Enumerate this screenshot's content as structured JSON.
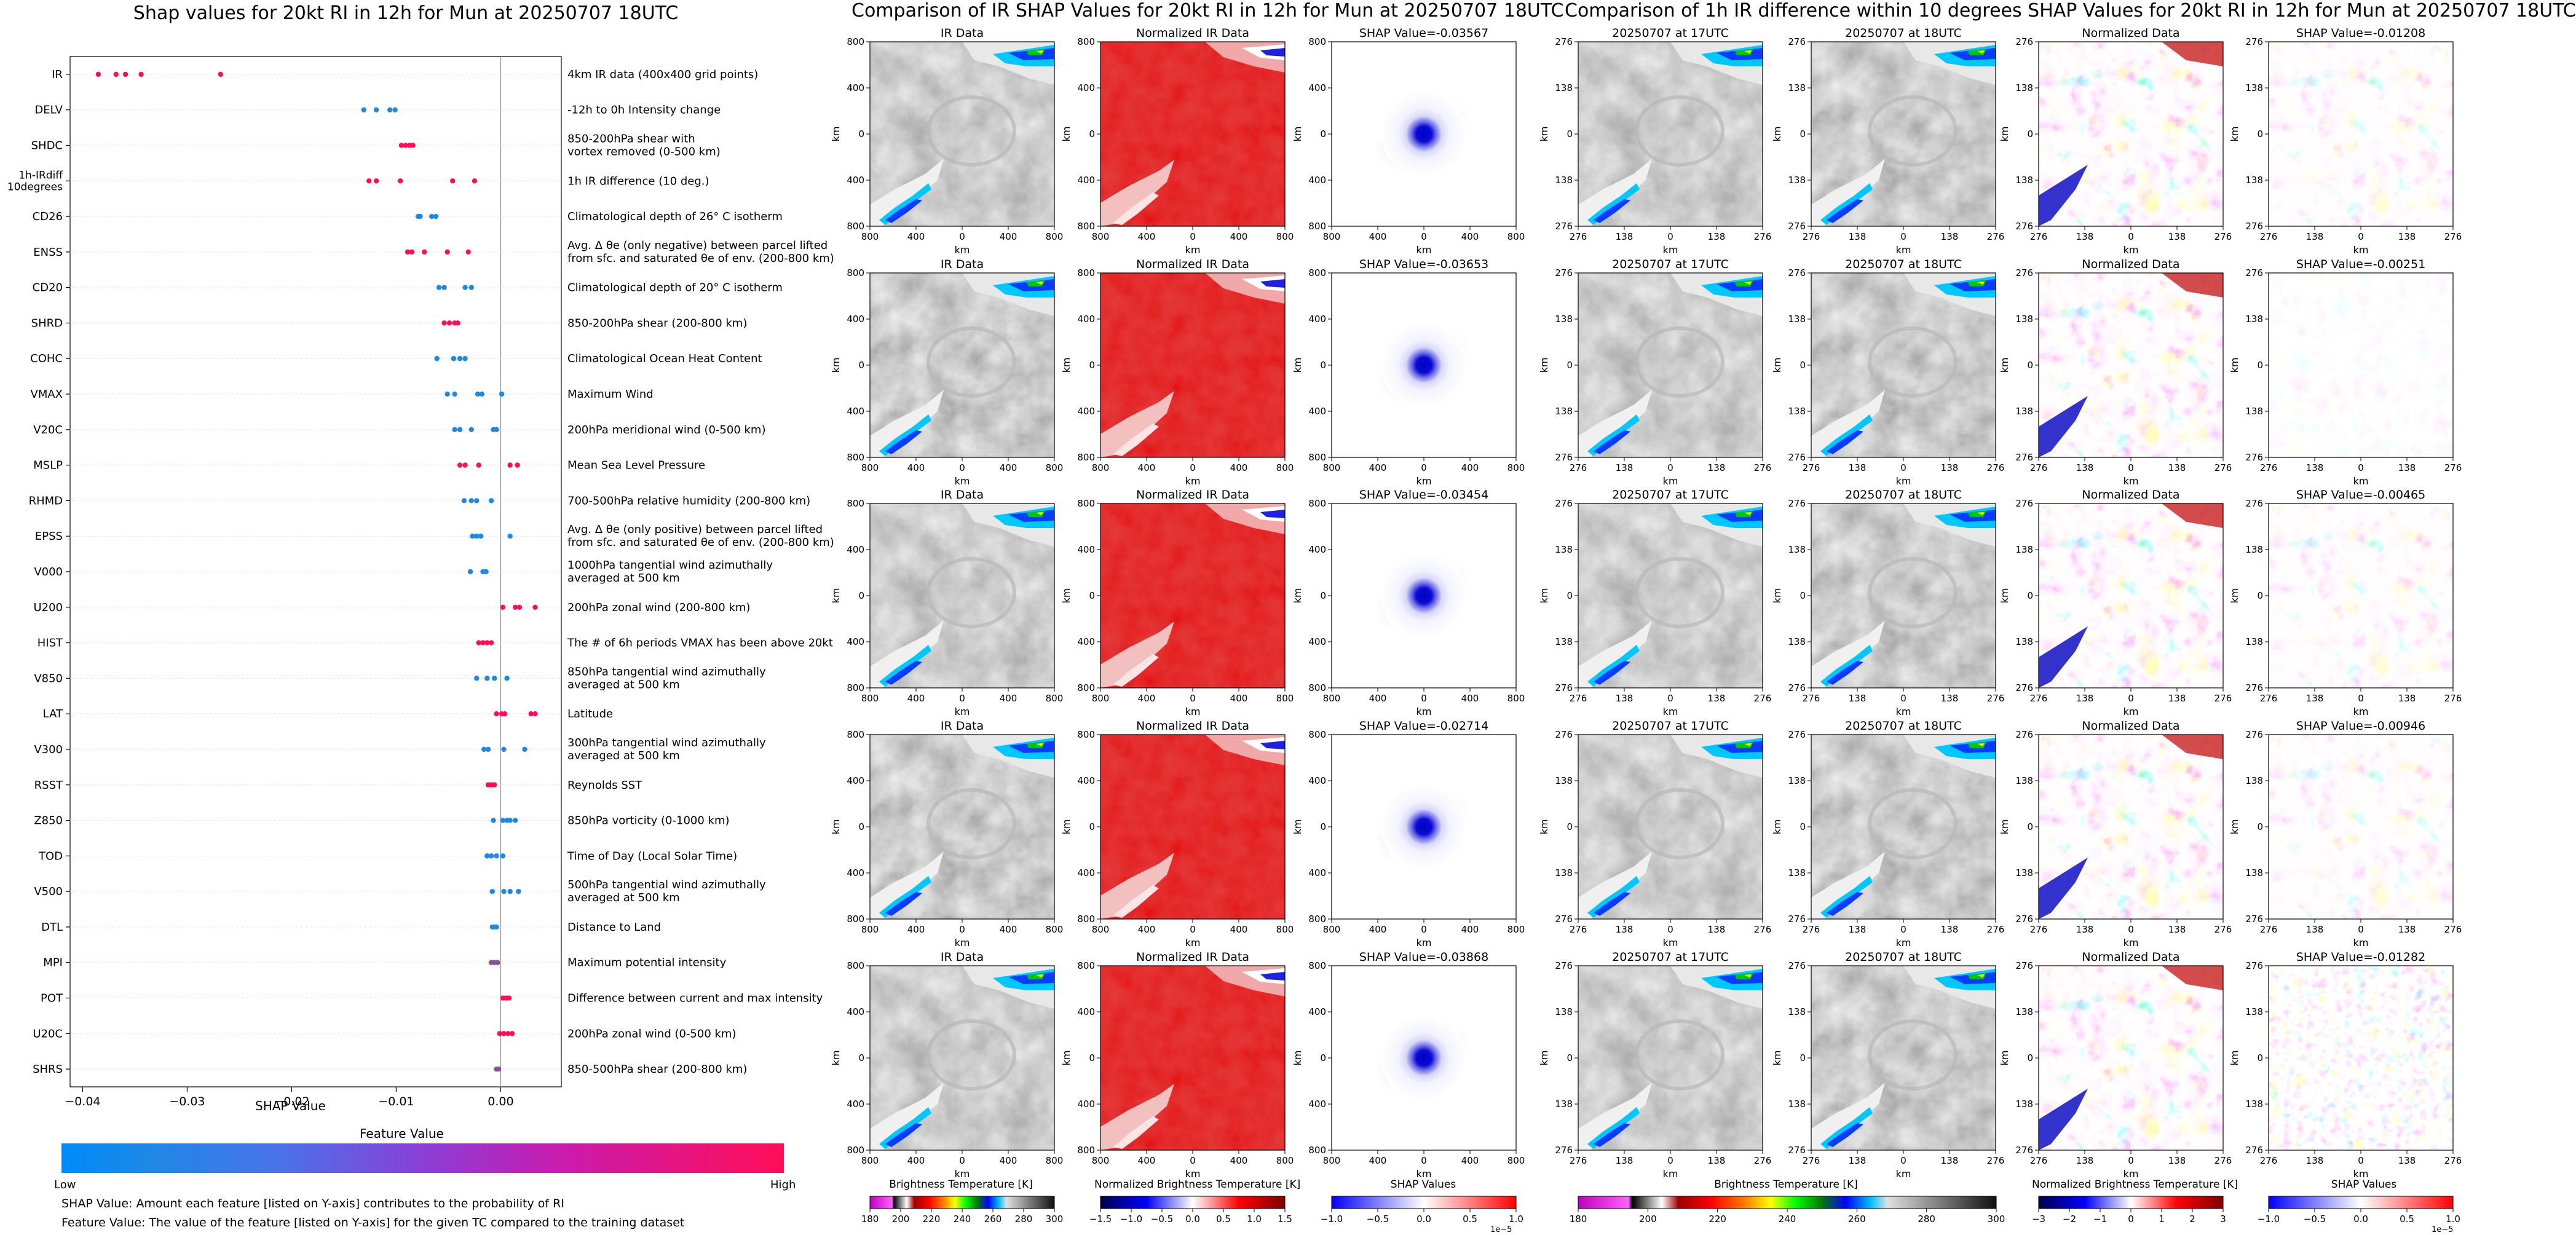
{
  "colors": {
    "low": "#1e88e5",
    "high": "#ff0d57",
    "panel_blue": "#0000c8",
    "panel_red": "#d00000"
  },
  "left_panel": {
    "title": "Shap values for 20kt RI in 12h for Mun at 20250707 18UTC",
    "xlabel": "SHAP Value",
    "feature_value_label": "Feature Value",
    "low_label": "Low",
    "high_label": "High",
    "footnote1": "SHAP Value: Amount each feature [listed on Y-axis] contributes to the probability of RI",
    "footnote2": "Feature Value: The value of the feature [listed on Y-axis] for the given TC compared to the training dataset"
  },
  "middle_panel": {
    "title": "Comparison of IR SHAP Values for 20kt RI in 12h for Mun at 20250707 18UTC",
    "col_titles": [
      "IR Data",
      "Normalized IR Data"
    ],
    "shap_titles": [
      "SHAP Value=-0.03567",
      "SHAP Value=-0.03653",
      "SHAP Value=-0.03454",
      "SHAP Value=-0.02714",
      "SHAP Value=-0.03868"
    ],
    "xticks": [
      "800",
      "400",
      "0",
      "400",
      "800"
    ],
    "yticks": [
      "800",
      "400",
      "0",
      "400",
      "800"
    ],
    "axis_label": "km",
    "cb1_ticks": [
      "180",
      "200",
      "220",
      "240",
      "260",
      "280",
      "300"
    ],
    "cb1_label": "Brightness Temperature [K]",
    "cb2_ticks": [
      "−1.5",
      "−1.0",
      "−0.5",
      "0.0",
      "0.5",
      "1.0",
      "1.5"
    ],
    "cb2_label": "Normalized Brightness Temperature [K]",
    "cb3_ticks": [
      "−1.0",
      "−0.5",
      "0.0",
      "0.5",
      "1.0"
    ],
    "cb3_label": "SHAP Values",
    "cb3_exp": "1e−5"
  },
  "right_panel": {
    "title": "Comparison of 1h IR difference within 10 degrees SHAP Values for 20kt RI in 12h for Mun at 20250707 18UTC",
    "col_titles": [
      "20250707 at 17UTC",
      "20250707 at 18UTC",
      "Normalized Data"
    ],
    "shap_titles": [
      "SHAP Value=-0.01208",
      "SHAP Value=-0.00251",
      "SHAP Value=-0.00465",
      "SHAP Value=-0.00946",
      "SHAP Value=-0.01282"
    ],
    "xticks": [
      "276",
      "138",
      "0",
      "138",
      "276"
    ],
    "yticks": [
      "276",
      "138",
      "0",
      "138",
      "276"
    ],
    "axis_label": "km",
    "cb1_ticks": [
      "180",
      "200",
      "220",
      "240",
      "260",
      "280",
      "300"
    ],
    "cb1_label": "Brightness Temperature [K]",
    "cb2_ticks": [
      "−3",
      "−2",
      "−1",
      "0",
      "1",
      "2",
      "3"
    ],
    "cb2_label": "Normalized Brightness Temperature [K]",
    "cb3_ticks": [
      "−1.0",
      "−0.5",
      "0.0",
      "0.5",
      "1.0"
    ],
    "cb3_label": "SHAP Values",
    "cb3_exp": "1e−5"
  },
  "chart_data": {
    "type": "scatter",
    "title": "Shap values for 20kt RI in 12h for Mun at 20250707 18UTC",
    "xlabel": "SHAP Value",
    "xlim": [
      -0.0412,
      0.0058
    ],
    "xticks": [
      -0.04,
      -0.03,
      -0.02,
      -0.01,
      0.0
    ],
    "xtick_labels": [
      "−0.04",
      "−0.03",
      "−0.02",
      "−0.01",
      "0.00"
    ],
    "features": [
      {
        "name": "IR",
        "desc": [
          "4km IR data (400x400 grid points)"
        ],
        "points": [
          [
            -0.0385,
            1
          ],
          [
            -0.0368,
            1
          ],
          [
            -0.0359,
            1
          ],
          [
            -0.0344,
            1
          ],
          [
            -0.0268,
            1
          ]
        ]
      },
      {
        "name": "DELV",
        "desc": [
          "-12h to 0h Intensity change"
        ],
        "points": [
          [
            -0.0131,
            0
          ],
          [
            -0.0119,
            0
          ],
          [
            -0.0106,
            0
          ],
          [
            -0.0101,
            0
          ]
        ]
      },
      {
        "name": "SHDC",
        "desc": [
          "850-200hPa shear with",
          "vortex removed (0-500 km)"
        ],
        "points": [
          [
            -0.0095,
            1
          ],
          [
            -0.0091,
            1
          ],
          [
            -0.0087,
            1
          ],
          [
            -0.0084,
            1
          ]
        ]
      },
      {
        "name": "1h-IRdiff\n10degrees",
        "desc": [
          "1h IR difference (10 deg.)"
        ],
        "points": [
          [
            -0.0126,
            1
          ],
          [
            -0.0119,
            1
          ],
          [
            -0.0096,
            1
          ],
          [
            -0.0046,
            1
          ],
          [
            -0.0025,
            1
          ]
        ]
      },
      {
        "name": "CD26",
        "desc": [
          "Climatological depth of 26° C isotherm"
        ],
        "points": [
          [
            -0.0079,
            0
          ],
          [
            -0.0077,
            0
          ],
          [
            -0.0066,
            0
          ],
          [
            -0.0062,
            0
          ]
        ]
      },
      {
        "name": "ENSS",
        "desc": [
          "Avg. Δ θe (only negative) between parcel lifted",
          "from sfc. and saturated θe of env. (200-800 km)"
        ],
        "points": [
          [
            -0.0089,
            1
          ],
          [
            -0.0085,
            1
          ],
          [
            -0.0073,
            1
          ],
          [
            -0.0051,
            1
          ],
          [
            -0.0031,
            1
          ]
        ]
      },
      {
        "name": "CD20",
        "desc": [
          "Climatological depth of 20° C isotherm"
        ],
        "points": [
          [
            -0.0059,
            0
          ],
          [
            -0.0054,
            0
          ],
          [
            -0.0034,
            0
          ],
          [
            -0.0028,
            0
          ]
        ]
      },
      {
        "name": "SHRD",
        "desc": [
          "850-200hPa shear (200-800 km)"
        ],
        "points": [
          [
            -0.0054,
            1
          ],
          [
            -0.0049,
            1
          ],
          [
            -0.0044,
            1
          ],
          [
            -0.0041,
            1
          ]
        ]
      },
      {
        "name": "COHC",
        "desc": [
          "Climatological Ocean Heat Content"
        ],
        "points": [
          [
            -0.0061,
            0
          ],
          [
            -0.0045,
            0
          ],
          [
            -0.0039,
            0
          ],
          [
            -0.0034,
            0
          ]
        ]
      },
      {
        "name": "VMAX",
        "desc": [
          "Maximum Wind"
        ],
        "points": [
          [
            -0.0051,
            0
          ],
          [
            -0.0044,
            0
          ],
          [
            -0.0022,
            0
          ],
          [
            -0.0018,
            0
          ],
          [
            0.0001,
            0
          ]
        ]
      },
      {
        "name": "V20C",
        "desc": [
          "200hPa meridional wind (0-500 km)"
        ],
        "points": [
          [
            -0.0044,
            0
          ],
          [
            -0.0039,
            0
          ],
          [
            -0.0028,
            0
          ],
          [
            -0.0007,
            0
          ],
          [
            -0.0004,
            0
          ]
        ]
      },
      {
        "name": "MSLP",
        "desc": [
          "Mean Sea Level Pressure"
        ],
        "points": [
          [
            -0.0039,
            1
          ],
          [
            -0.0034,
            1
          ],
          [
            -0.0021,
            1
          ],
          [
            0.0009,
            1
          ],
          [
            0.0016,
            1
          ]
        ]
      },
      {
        "name": "RHMD",
        "desc": [
          "700-500hPa relative humidity (200-800 km)"
        ],
        "points": [
          [
            -0.0035,
            0
          ],
          [
            -0.0028,
            0
          ],
          [
            -0.0023,
            0
          ],
          [
            -0.0009,
            0
          ]
        ]
      },
      {
        "name": "EPSS",
        "desc": [
          "Avg. Δ θe (only positive) between parcel lifted",
          "from sfc. and saturated θe of env. (200-800 km)"
        ],
        "points": [
          [
            -0.0027,
            0
          ],
          [
            -0.0023,
            0
          ],
          [
            -0.0019,
            0
          ],
          [
            0.0009,
            0
          ]
        ]
      },
      {
        "name": "V000",
        "desc": [
          "1000hPa tangential wind azimuthally",
          "averaged at 500 km"
        ],
        "points": [
          [
            -0.0029,
            0
          ],
          [
            -0.0017,
            0
          ],
          [
            -0.0014,
            0
          ]
        ]
      },
      {
        "name": "U200",
        "desc": [
          "200hPa zonal wind (200-800 km)"
        ],
        "points": [
          [
            0.0002,
            1
          ],
          [
            0.0014,
            1
          ],
          [
            0.0018,
            1
          ],
          [
            0.0033,
            1
          ]
        ]
      },
      {
        "name": "HIST",
        "desc": [
          "The # of 6h periods VMAX has been above 20kt"
        ],
        "points": [
          [
            -0.0021,
            1
          ],
          [
            -0.0017,
            1
          ],
          [
            -0.0013,
            1
          ],
          [
            -0.0009,
            1
          ]
        ]
      },
      {
        "name": "V850",
        "desc": [
          "850hPa tangential wind azimuthally",
          "averaged at 500 km"
        ],
        "points": [
          [
            -0.0023,
            0
          ],
          [
            -0.0013,
            0
          ],
          [
            -0.0006,
            0
          ],
          [
            0.0006,
            0
          ]
        ]
      },
      {
        "name": "LAT",
        "desc": [
          "Latitude"
        ],
        "points": [
          [
            -0.0004,
            1
          ],
          [
            0.0001,
            1
          ],
          [
            0.0004,
            1
          ],
          [
            0.0029,
            1
          ],
          [
            0.0033,
            1
          ]
        ]
      },
      {
        "name": "V300",
        "desc": [
          "300hPa tangential wind azimuthally",
          "averaged at 500 km"
        ],
        "points": [
          [
            -0.0016,
            0
          ],
          [
            -0.0012,
            0
          ],
          [
            0.0003,
            0
          ],
          [
            0.0023,
            0
          ]
        ]
      },
      {
        "name": "RSST",
        "desc": [
          "Reynolds SST"
        ],
        "points": [
          [
            -0.0012,
            1
          ],
          [
            -0.0009,
            1
          ],
          [
            -0.0006,
            1
          ]
        ]
      },
      {
        "name": "Z850",
        "desc": [
          "850hPa vorticity (0-1000 km)"
        ],
        "points": [
          [
            -0.0007,
            0
          ],
          [
            0.0002,
            0
          ],
          [
            0.0006,
            0
          ],
          [
            0.0009,
            0
          ],
          [
            0.0014,
            0
          ]
        ]
      },
      {
        "name": "TOD",
        "desc": [
          "Time of Day (Local Solar Time)"
        ],
        "points": [
          [
            -0.0013,
            0
          ],
          [
            -0.0009,
            0
          ],
          [
            -0.0004,
            0
          ],
          [
            0.0002,
            0
          ]
        ]
      },
      {
        "name": "V500",
        "desc": [
          "500hPa tangential wind azimuthally",
          "averaged at 500 km"
        ],
        "points": [
          [
            -0.0008,
            0
          ],
          [
            0.0003,
            0
          ],
          [
            0.0009,
            0
          ],
          [
            0.0017,
            0
          ]
        ]
      },
      {
        "name": "DTL",
        "desc": [
          "Distance to Land"
        ],
        "points": [
          [
            -0.0008,
            0
          ],
          [
            -0.0006,
            0
          ],
          [
            -0.0004,
            0
          ]
        ]
      },
      {
        "name": "MPI",
        "desc": [
          "Maximum potential intensity"
        ],
        "points": [
          [
            -0.0009,
            0.5
          ],
          [
            -0.0006,
            0.5
          ],
          [
            -0.0003,
            0.5
          ]
        ]
      },
      {
        "name": "POT",
        "desc": [
          "Difference between current and max intensity"
        ],
        "points": [
          [
            0.0002,
            1
          ],
          [
            0.0005,
            1
          ],
          [
            0.0008,
            1
          ]
        ]
      },
      {
        "name": "U20C",
        "desc": [
          "200hPa zonal wind (0-500 km)"
        ],
        "points": [
          [
            -0.0001,
            1
          ],
          [
            0.0003,
            1
          ],
          [
            0.0007,
            1
          ],
          [
            0.0011,
            1
          ]
        ]
      },
      {
        "name": "SHRS",
        "desc": [
          "850-500hPa shear (200-800 km)"
        ],
        "points": [
          [
            -0.0004,
            0.5
          ],
          [
            -0.0002,
            0.5
          ]
        ]
      }
    ]
  }
}
